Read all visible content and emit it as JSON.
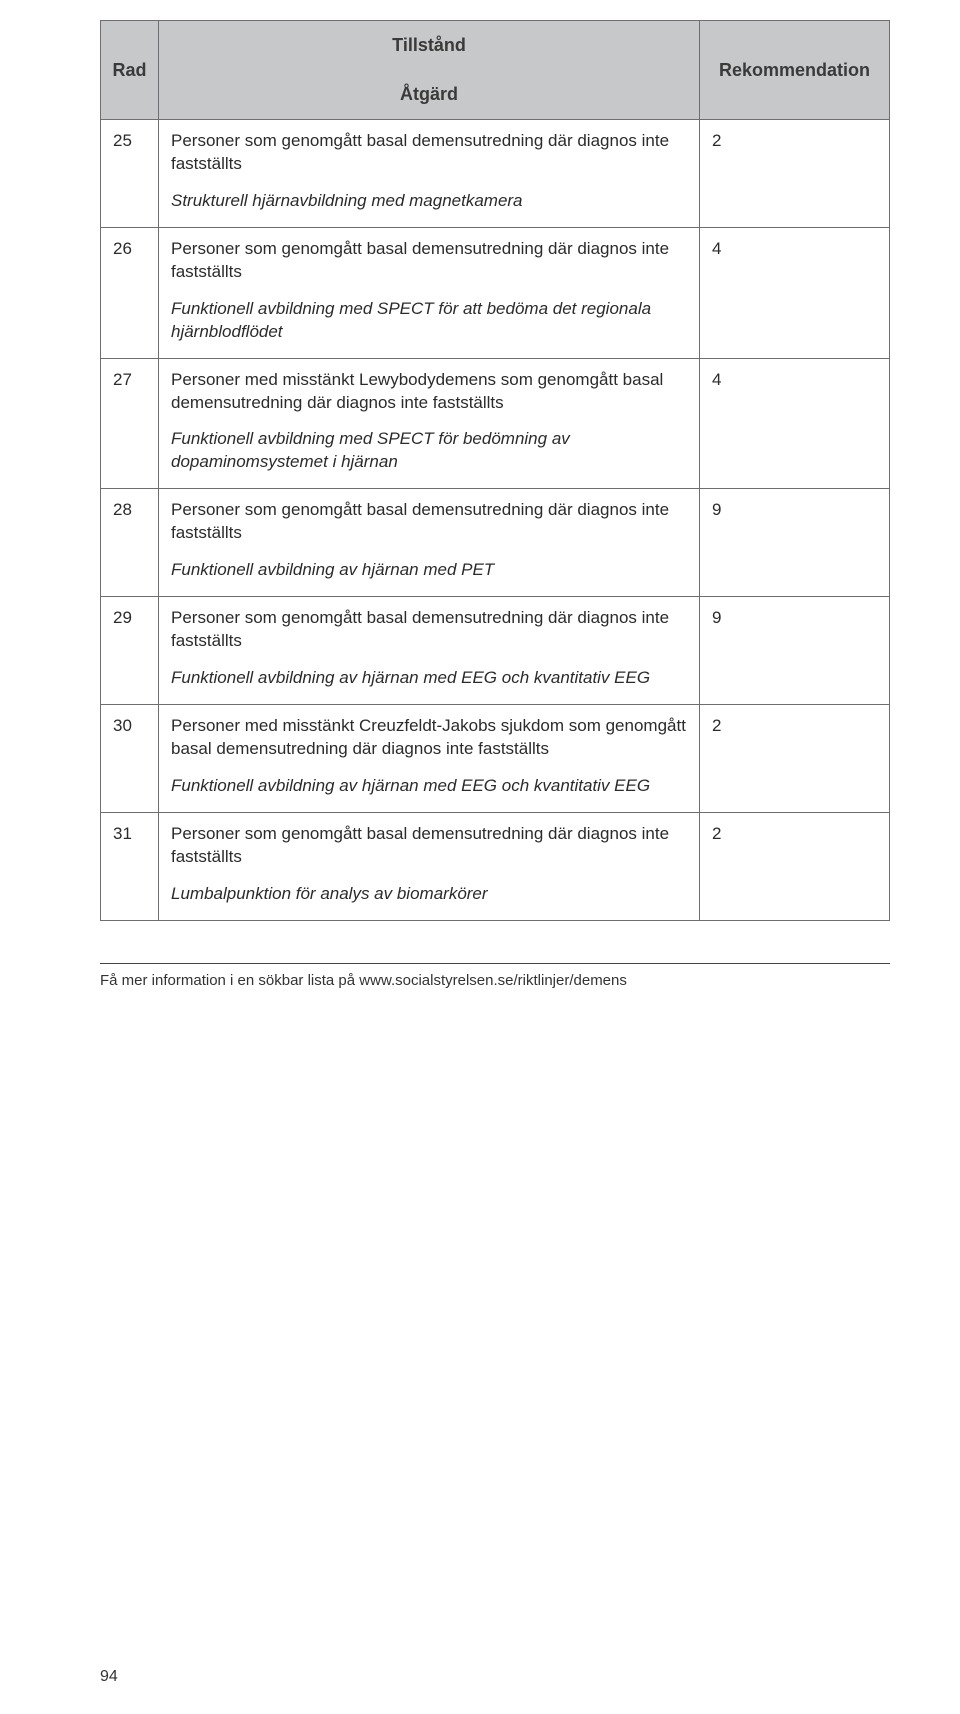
{
  "colors": {
    "header_bg": "#c7c8ca",
    "border": "#6d6e71",
    "text": "#2b2b2b",
    "page_bg": "#ffffff"
  },
  "table": {
    "header": {
      "rad": "Rad",
      "tillstand": "Tillstånd",
      "atgard": "Åtgärd",
      "rekommendation": "Rekommendation"
    },
    "rows": [
      {
        "num": "25",
        "condition": "Personer som genomgått basal demensutredning där diagnos inte fastställts",
        "action": "Strukturell hjärnavbildning med magnetkamera",
        "rec": "2"
      },
      {
        "num": "26",
        "condition": "Personer som genomgått basal demensutredning där diagnos inte fastställts",
        "action": "Funktionell avbildning med SPECT för att bedöma det regionala hjärnblodflödet",
        "rec": "4"
      },
      {
        "num": "27",
        "condition": "Personer med misstänkt Lewybodydemens som genomgått basal demensutredning där diagnos inte fastställts",
        "action": "Funktionell avbildning med SPECT för bedömning av dopaminomsystemet i hjärnan",
        "rec": "4"
      },
      {
        "num": "28",
        "condition": "Personer som genomgått basal demensutredning där diagnos inte fastställts",
        "action": "Funktionell avbildning av hjärnan med PET",
        "rec": "9"
      },
      {
        "num": "29",
        "condition": "Personer som genomgått basal demensutredning där diagnos inte fastställts",
        "action": "Funktionell avbildning av hjärnan med EEG och kvantitativ EEG",
        "rec": "9"
      },
      {
        "num": "30",
        "condition": "Personer med misstänkt Creuzfeldt-Jakobs sjukdom som genomgått basal demensutredning där diagnos inte fastställts",
        "action": "Funktionell avbildning av hjärnan med EEG och kvantitativ EEG",
        "rec": "2"
      },
      {
        "num": "31",
        "condition": "Personer som genomgått basal demensutredning där diagnos inte fastställts",
        "action": "Lumbalpunktion för analys av biomarkörer",
        "rec": "2"
      }
    ]
  },
  "footnote": "Få mer information i en sökbar lista på www.socialstyrelsen.se/riktlinjer/demens",
  "page_number": "94"
}
